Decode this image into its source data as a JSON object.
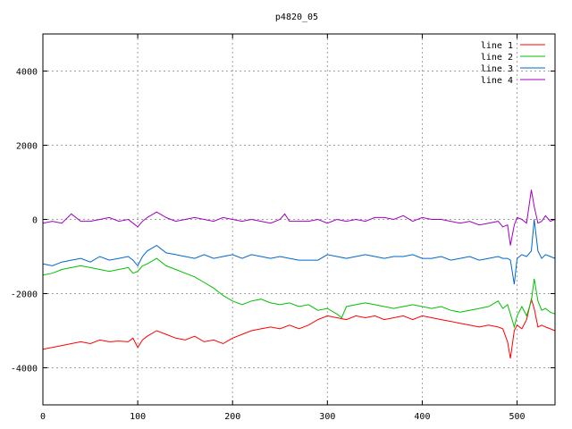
{
  "chart_data": {
    "type": "line",
    "title": "p4820_05",
    "xlabel": "",
    "ylabel": "",
    "xlim": [
      0,
      540
    ],
    "ylim": [
      -5000,
      5000
    ],
    "xticks": [
      0,
      100,
      200,
      300,
      400,
      500
    ],
    "yticks": [
      -4000,
      -2000,
      0,
      2000,
      4000
    ],
    "grid": true,
    "legend_position": "top-right",
    "series": [
      {
        "name": "line 1",
        "color": "#ff0000",
        "x": [
          0,
          10,
          20,
          30,
          40,
          50,
          60,
          70,
          80,
          90,
          95,
          100,
          105,
          110,
          120,
          130,
          140,
          150,
          160,
          170,
          180,
          190,
          200,
          210,
          220,
          230,
          240,
          250,
          260,
          270,
          280,
          290,
          300,
          310,
          320,
          330,
          340,
          350,
          360,
          370,
          380,
          390,
          400,
          410,
          420,
          430,
          440,
          450,
          460,
          470,
          480,
          485,
          490,
          493,
          497,
          500,
          505,
          510,
          515,
          518,
          522,
          526,
          530,
          535,
          540
        ],
        "y": [
          -3500,
          -3450,
          -3400,
          -3350,
          -3300,
          -3350,
          -3250,
          -3300,
          -3280,
          -3300,
          -3200,
          -3450,
          -3250,
          -3150,
          -3000,
          -3100,
          -3200,
          -3250,
          -3150,
          -3300,
          -3250,
          -3350,
          -3200,
          -3100,
          -3000,
          -2950,
          -2900,
          -2950,
          -2850,
          -2950,
          -2850,
          -2700,
          -2600,
          -2650,
          -2700,
          -2600,
          -2650,
          -2600,
          -2700,
          -2650,
          -2600,
          -2700,
          -2600,
          -2650,
          -2700,
          -2750,
          -2800,
          -2850,
          -2900,
          -2850,
          -2900,
          -2950,
          -3300,
          -3750,
          -3000,
          -2850,
          -2950,
          -2700,
          -2150,
          -2400,
          -2900,
          -2850,
          -2900,
          -2950,
          -3000
        ]
      },
      {
        "name": "line 2",
        "color": "#00c000",
        "x": [
          0,
          10,
          20,
          30,
          40,
          50,
          60,
          70,
          80,
          90,
          95,
          100,
          105,
          110,
          120,
          130,
          140,
          150,
          160,
          170,
          180,
          190,
          200,
          210,
          220,
          230,
          240,
          250,
          260,
          270,
          280,
          290,
          300,
          310,
          315,
          320,
          330,
          340,
          350,
          360,
          370,
          380,
          390,
          400,
          410,
          420,
          430,
          440,
          450,
          460,
          470,
          480,
          485,
          490,
          493,
          497,
          500,
          505,
          510,
          515,
          518,
          522,
          526,
          530,
          535,
          540
        ],
        "y": [
          -1500,
          -1450,
          -1350,
          -1300,
          -1250,
          -1300,
          -1350,
          -1400,
          -1350,
          -1300,
          -1450,
          -1400,
          -1250,
          -1200,
          -1050,
          -1250,
          -1350,
          -1450,
          -1550,
          -1700,
          -1850,
          -2050,
          -2200,
          -2300,
          -2200,
          -2150,
          -2250,
          -2300,
          -2250,
          -2350,
          -2300,
          -2450,
          -2400,
          -2550,
          -2650,
          -2350,
          -2300,
          -2250,
          -2300,
          -2350,
          -2400,
          -2350,
          -2300,
          -2350,
          -2400,
          -2350,
          -2450,
          -2500,
          -2450,
          -2400,
          -2350,
          -2200,
          -2400,
          -2300,
          -2550,
          -2900,
          -2600,
          -2350,
          -2600,
          -2200,
          -1600,
          -2200,
          -2450,
          -2400,
          -2500,
          -2550
        ]
      },
      {
        "name": "line 3",
        "color": "#0066cc",
        "x": [
          0,
          10,
          20,
          30,
          40,
          50,
          60,
          70,
          80,
          90,
          95,
          100,
          105,
          110,
          120,
          130,
          140,
          150,
          160,
          170,
          180,
          190,
          200,
          210,
          220,
          230,
          240,
          250,
          260,
          270,
          280,
          290,
          300,
          310,
          320,
          330,
          340,
          350,
          360,
          370,
          380,
          390,
          400,
          410,
          420,
          430,
          440,
          450,
          460,
          470,
          480,
          485,
          490,
          493,
          497,
          500,
          505,
          510,
          515,
          518,
          522,
          526,
          530,
          535,
          540
        ],
        "y": [
          -1200,
          -1250,
          -1150,
          -1100,
          -1050,
          -1150,
          -1000,
          -1100,
          -1050,
          -1000,
          -1100,
          -1250,
          -1000,
          -850,
          -700,
          -900,
          -950,
          -1000,
          -1050,
          -950,
          -1050,
          -1000,
          -950,
          -1050,
          -950,
          -1000,
          -1050,
          -1000,
          -1050,
          -1100,
          -1100,
          -1100,
          -950,
          -1000,
          -1050,
          -1000,
          -950,
          -1000,
          -1050,
          -1000,
          -1000,
          -950,
          -1050,
          -1050,
          -1000,
          -1100,
          -1050,
          -1000,
          -1100,
          -1050,
          -1000,
          -1050,
          -1050,
          -1100,
          -1750,
          -1050,
          -950,
          -1000,
          -850,
          0,
          -850,
          -1050,
          -950,
          -1000,
          -1050
        ]
      },
      {
        "name": "line 4",
        "color": "#a000c0",
        "x": [
          0,
          10,
          20,
          30,
          40,
          50,
          60,
          70,
          80,
          90,
          95,
          100,
          105,
          110,
          120,
          130,
          140,
          150,
          160,
          170,
          180,
          190,
          200,
          210,
          220,
          230,
          240,
          250,
          255,
          260,
          270,
          280,
          290,
          300,
          310,
          320,
          330,
          340,
          350,
          360,
          370,
          380,
          390,
          400,
          410,
          420,
          430,
          440,
          450,
          460,
          470,
          480,
          485,
          490,
          493,
          497,
          500,
          505,
          510,
          515,
          518,
          522,
          526,
          530,
          535,
          540
        ],
        "y": [
          -100,
          -50,
          -100,
          150,
          -50,
          -50,
          0,
          50,
          -50,
          0,
          -100,
          -200,
          -50,
          50,
          200,
          50,
          -50,
          0,
          50,
          0,
          -50,
          50,
          0,
          -50,
          0,
          -50,
          -100,
          0,
          150,
          -50,
          -50,
          -50,
          0,
          -100,
          0,
          -50,
          0,
          -50,
          50,
          50,
          0,
          100,
          -50,
          50,
          0,
          0,
          -50,
          -100,
          -50,
          -150,
          -100,
          -50,
          -200,
          -150,
          -700,
          -150,
          50,
          0,
          -100,
          800,
          350,
          -100,
          -50,
          100,
          -50,
          0
        ]
      }
    ]
  }
}
